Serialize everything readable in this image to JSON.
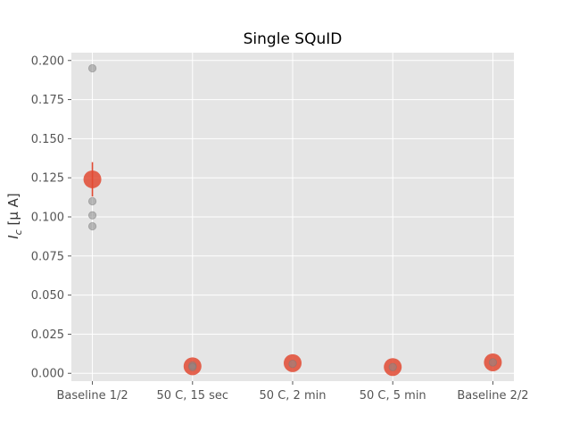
{
  "chart_data": {
    "type": "scatter",
    "title": "Single SQuID",
    "ylabel_main": "I",
    "ylabel_sub": "c",
    "ylabel_rest": " [μ A]",
    "xlabel": "",
    "categories": [
      "Baseline 1/2",
      "50 C, 15 sec",
      "50 C, 2 min",
      "50 C, 5 min",
      "Baseline 2/2"
    ],
    "ylim": [
      -0.005,
      0.205
    ],
    "yticks": [
      0.0,
      0.025,
      0.05,
      0.075,
      0.1,
      0.125,
      0.15,
      0.175,
      0.2
    ],
    "ytick_labels": [
      "0.000",
      "0.025",
      "0.050",
      "0.075",
      "0.100",
      "0.125",
      "0.150",
      "0.175",
      "0.200"
    ],
    "grid": true,
    "series": [
      {
        "role": "individual",
        "color": "#888888",
        "points": [
          {
            "category": 0,
            "y": 0.195
          },
          {
            "category": 0,
            "y": 0.11
          },
          {
            "category": 0,
            "y": 0.101
          },
          {
            "category": 0,
            "y": 0.094
          },
          {
            "category": 1,
            "y": 0.005
          },
          {
            "category": 1,
            "y": 0.004
          },
          {
            "category": 2,
            "y": 0.006
          },
          {
            "category": 3,
            "y": 0.004
          },
          {
            "category": 4,
            "y": 0.007
          }
        ]
      },
      {
        "role": "mean",
        "color": "#E24A33",
        "points": [
          {
            "category": 0,
            "y": 0.124,
            "yerr": 0.011
          },
          {
            "category": 1,
            "y": 0.0045,
            "yerr": 0.0
          },
          {
            "category": 2,
            "y": 0.0065,
            "yerr": 0.0
          },
          {
            "category": 3,
            "y": 0.004,
            "yerr": 0.0
          },
          {
            "category": 4,
            "y": 0.007,
            "yerr": 0.0
          }
        ]
      }
    ],
    "colors": {
      "plot_background": "#E5E5E5",
      "grid": "#FFFFFF",
      "tick_text": "#555555",
      "title_text": "#000000"
    }
  }
}
